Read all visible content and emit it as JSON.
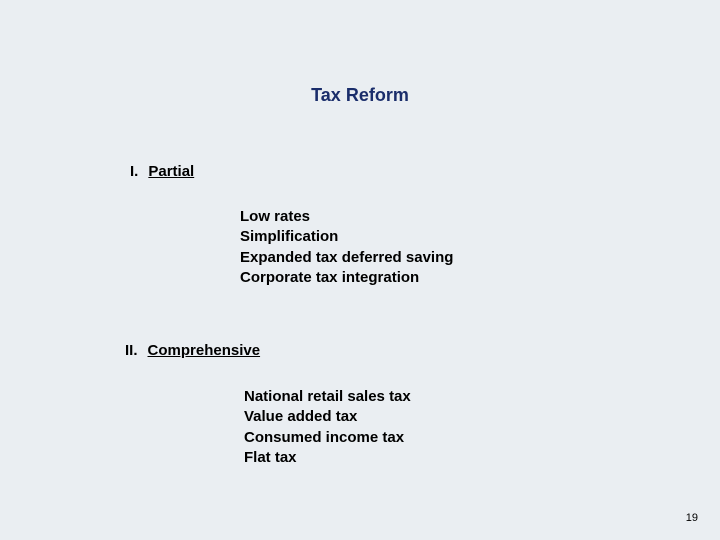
{
  "background_color": "#eaeef2",
  "title": {
    "text": "Tax Reform",
    "color": "#1a2d6b",
    "font_size": 18,
    "font_weight": "bold"
  },
  "sections": [
    {
      "roman": "I.",
      "label": "Partial",
      "items": [
        "Low rates",
        "Simplification",
        "Expanded tax deferred saving",
        "Corporate tax integration"
      ]
    },
    {
      "roman": "II.",
      "label": "Comprehensive",
      "items": [
        "National retail sales tax",
        "Value added tax",
        "Consumed income tax",
        "Flat tax"
      ]
    }
  ],
  "page_number": "19",
  "body_text": {
    "color": "#000000",
    "font_size": 15,
    "font_weight": "bold"
  }
}
